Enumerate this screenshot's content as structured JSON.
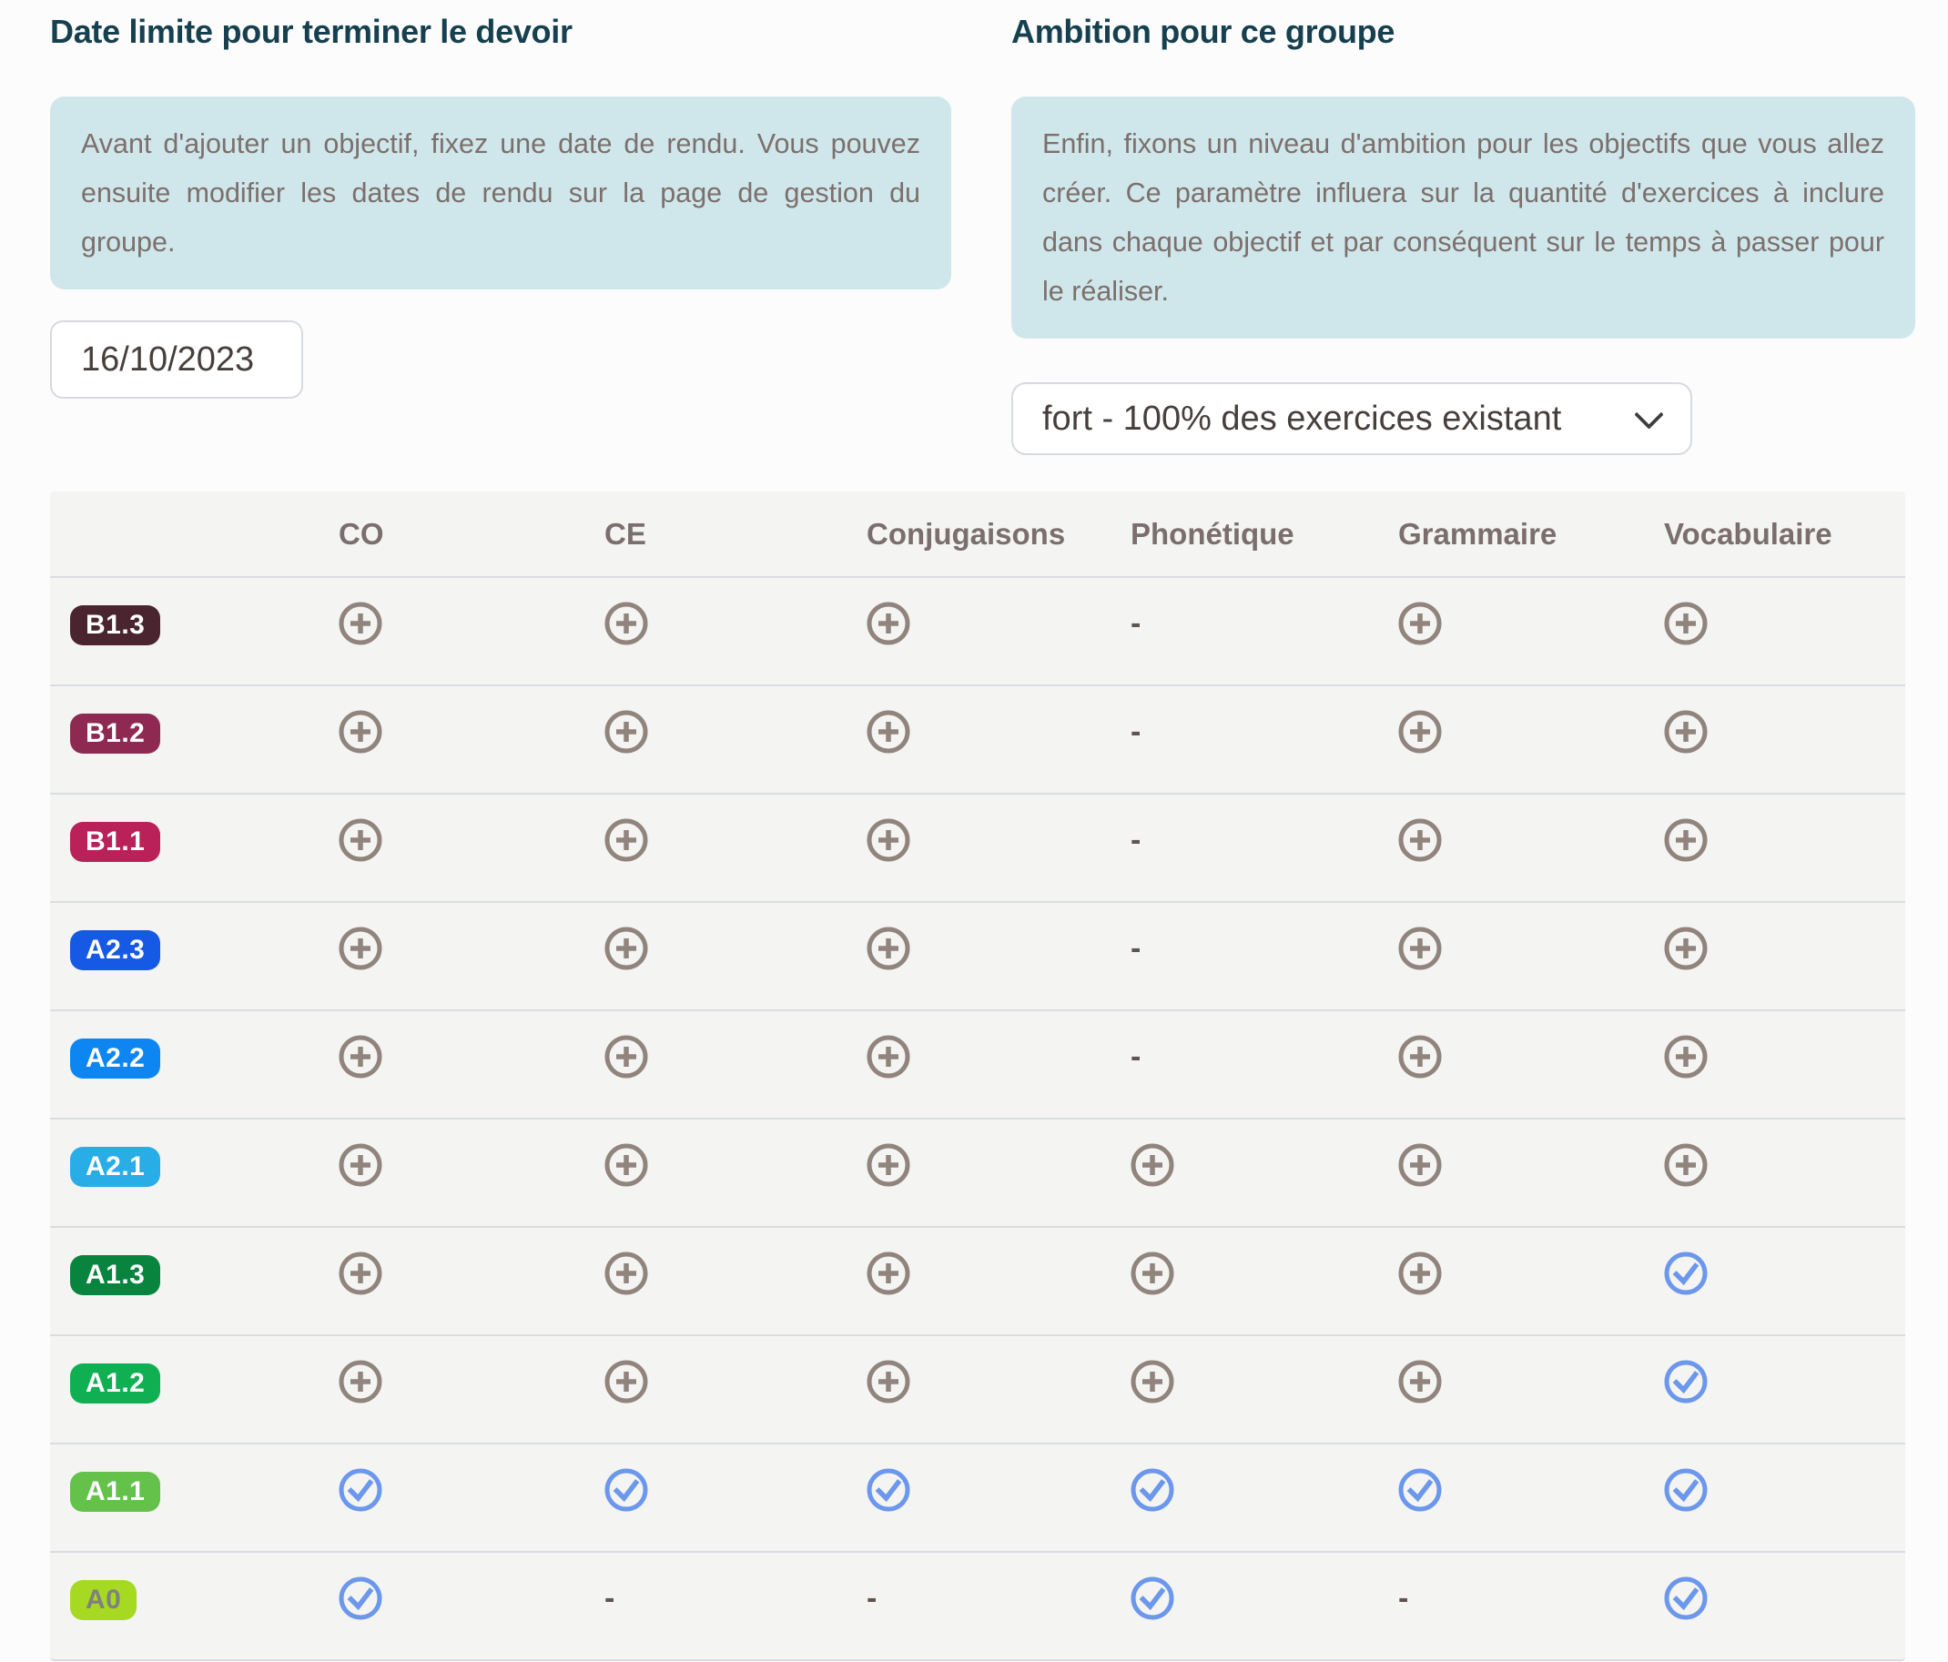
{
  "deadline_section": {
    "title": "Date limite pour terminer le devoir",
    "info": "Avant d'ajouter un objectif, fixez une date de rendu. Vous pouvez ensuite modifier les dates de rendu sur la page de gestion du groupe.",
    "date_value": "16/10/2023"
  },
  "ambition_section": {
    "title": "Ambition pour ce groupe",
    "info": "Enfin, fixons un niveau d'ambition pour les objectifs que vous allez créer. Ce paramètre influera sur la quantité d'exercices à inclure dans chaque objectif et par conséquent sur le temps à passer pour le réaliser.",
    "selected_option": "fort - 100% des exercices existant",
    "chevron_icon": "chevron-down"
  },
  "colors": {
    "page_bg": "#fcfcfc",
    "heading": "#16404f",
    "info_bg": "#cfe7eb",
    "info_text": "#7c6f6c",
    "field_border": "#d7dade",
    "field_text": "#463f3c",
    "chevron": "#3d3d3d",
    "table_bg": "#f4f4f3",
    "row_border": "#d9dce2",
    "header_text": "#7a6e6e",
    "plus_icon": "#90847d",
    "check_icon": "#6b97ec",
    "dash_text": "#60544f"
  },
  "table": {
    "columns": [
      {
        "key": "levels",
        "label": ""
      },
      {
        "key": "co",
        "label": "CO"
      },
      {
        "key": "ce",
        "label": "CE"
      },
      {
        "key": "conjugaisons",
        "label": "Conjugaisons"
      },
      {
        "key": "phonetique",
        "label": "Phonétique"
      },
      {
        "key": "grammaire",
        "label": "Grammaire"
      },
      {
        "key": "vocabulaire",
        "label": "Vocabulaire"
      }
    ],
    "dash": "-",
    "rows": [
      {
        "level": "B1.3",
        "badge_color": "#4a2530",
        "badge_text_color": "#ffffff",
        "cells": [
          "plus",
          "plus",
          "plus",
          "dash",
          "plus",
          "plus"
        ]
      },
      {
        "level": "B1.2",
        "badge_color": "#8e2952",
        "badge_text_color": "#ffffff",
        "cells": [
          "plus",
          "plus",
          "plus",
          "dash",
          "plus",
          "plus"
        ]
      },
      {
        "level": "B1.1",
        "badge_color": "#b92158",
        "badge_text_color": "#ffffff",
        "cells": [
          "plus",
          "plus",
          "plus",
          "dash",
          "plus",
          "plus"
        ]
      },
      {
        "level": "A2.3",
        "badge_color": "#1659e4",
        "badge_text_color": "#ffffff",
        "cells": [
          "plus",
          "plus",
          "plus",
          "dash",
          "plus",
          "plus"
        ]
      },
      {
        "level": "A2.2",
        "badge_color": "#0d86f2",
        "badge_text_color": "#ffffff",
        "cells": [
          "plus",
          "plus",
          "plus",
          "dash",
          "plus",
          "plus"
        ]
      },
      {
        "level": "A2.1",
        "badge_color": "#28ade6",
        "badge_text_color": "#ffffff",
        "cells": [
          "plus",
          "plus",
          "plus",
          "plus",
          "plus",
          "plus"
        ]
      },
      {
        "level": "A1.3",
        "badge_color": "#09843f",
        "badge_text_color": "#ffffff",
        "cells": [
          "plus",
          "plus",
          "plus",
          "plus",
          "plus",
          "check"
        ]
      },
      {
        "level": "A1.2",
        "badge_color": "#10b052",
        "badge_text_color": "#ffffff",
        "cells": [
          "plus",
          "plus",
          "plus",
          "plus",
          "plus",
          "check"
        ]
      },
      {
        "level": "A1.1",
        "badge_color": "#64c24b",
        "badge_text_color": "#ffffff",
        "cells": [
          "check",
          "check",
          "check",
          "check",
          "check",
          "check"
        ]
      },
      {
        "level": "A0",
        "badge_color": "#a6da22",
        "badge_text_color": "#808080",
        "cells": [
          "check",
          "dash",
          "dash",
          "check",
          "dash",
          "check"
        ]
      }
    ]
  }
}
